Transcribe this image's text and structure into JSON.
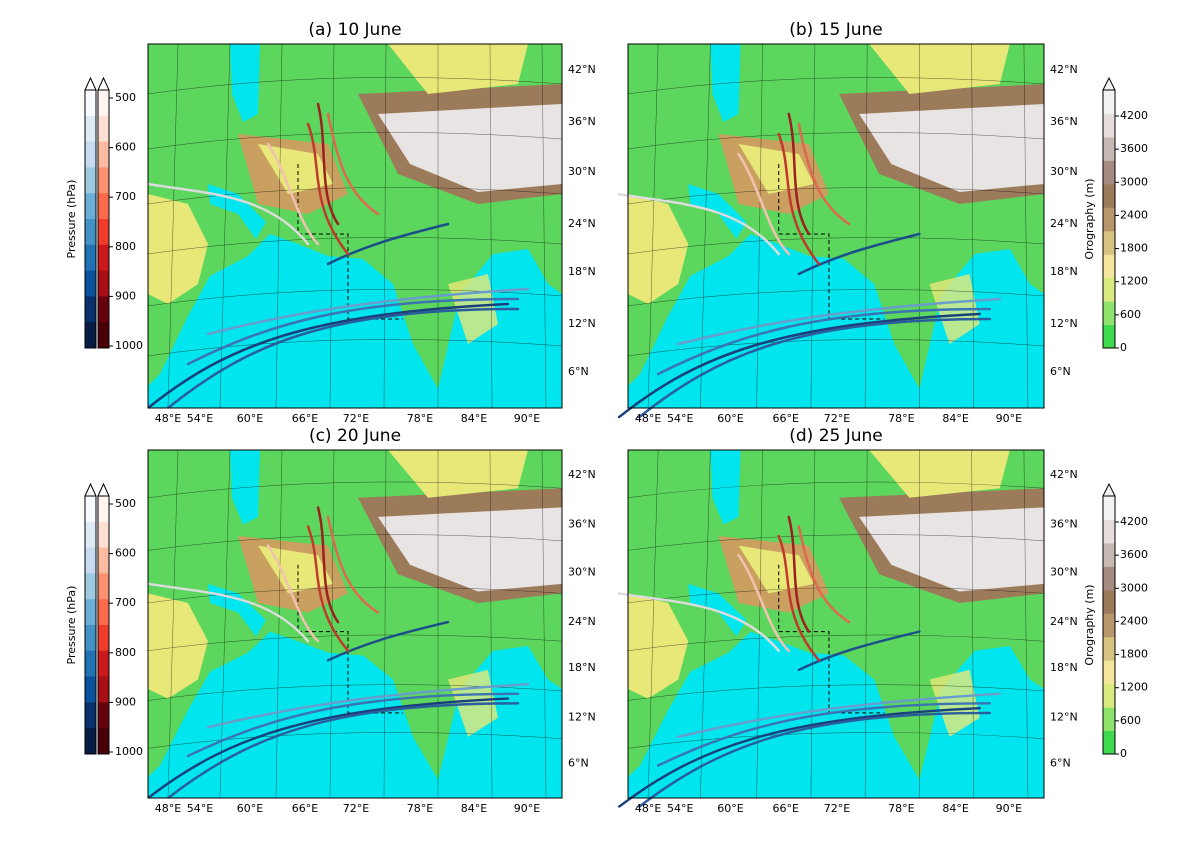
{
  "panels": [
    {
      "title": "(a) 10 June"
    },
    {
      "title": "(b) 15 June"
    },
    {
      "title": "(c) 20 June"
    },
    {
      "title": "(d) 25 June"
    }
  ],
  "lon_labels": [
    "48°E",
    "54°E",
    "60°E",
    "66°E",
    "72°E",
    "78°E",
    "84°E",
    "90°E"
  ],
  "lat_labels": [
    "42°N",
    "36°N",
    "30°N",
    "24°N",
    "18°N",
    "12°N",
    "6°N"
  ],
  "pressure_colorbar": {
    "label": "Pressure (hPa)",
    "ticks": [
      500,
      600,
      700,
      800,
      900,
      1000
    ]
  },
  "orography_colorbar": {
    "label": "Orography (m)",
    "ticks": [
      0,
      600,
      1200,
      1800,
      2400,
      3000,
      3600,
      4200
    ]
  }
}
